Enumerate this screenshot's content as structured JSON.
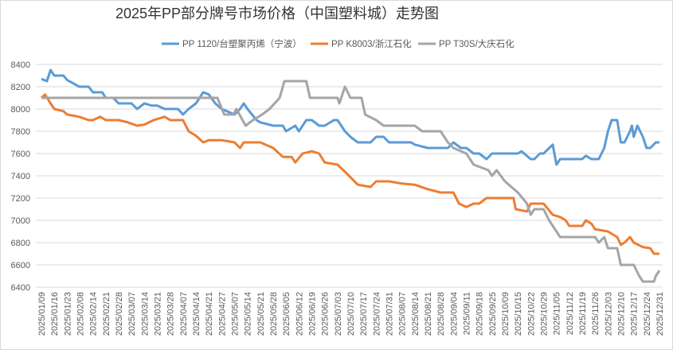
{
  "chart_data": {
    "type": "line",
    "title": "2025年PP部分牌号市场价格（中国塑料城）走势图",
    "xlabel": "",
    "ylabel": "",
    "ylim": [
      6400,
      8400
    ],
    "yticks": [
      6400,
      6600,
      6800,
      7000,
      7200,
      7400,
      7600,
      7800,
      8000,
      8200,
      8400
    ],
    "grid": true,
    "legend_position": "top",
    "year": "2025",
    "xtick_labels": [
      "2025/01/09",
      "2025/01/16",
      "2025/01/23",
      "2025/02/08",
      "2025/02/14",
      "2025/02/21",
      "2025/02/28",
      "2025/03/07",
      "2025/03/14",
      "2025/03/21",
      "2025/03/28",
      "2025/04/07",
      "2025/04/14",
      "2025/04/21",
      "2025/04/27",
      "2025/05/07",
      "2025/05/14",
      "2025/05/21",
      "2025/05/28",
      "2025/06/05",
      "2025/06/12",
      "2025/06/19",
      "2025/06/26",
      "2025/07/03",
      "2025/07/10",
      "2025/07/17",
      "2025/07/24",
      "2025/07/31",
      "2025/08/07",
      "2025/08/14",
      "2025/08/21",
      "2025/08/28",
      "2025/09/04",
      "2025/09/11",
      "2025/09/18",
      "2025/09/25",
      "2025/10/09",
      "2025/10/15",
      "2025/10/22",
      "2025/10/29",
      "2025/11/05",
      "2025/11/12",
      "2025/11/19",
      "2025/11/26",
      "2025/12/03",
      "2025/12/10",
      "2025/12/17",
      "2025/12/24",
      "2025/12/31"
    ],
    "series": [
      {
        "name": "PP 1120/台塑聚丙烯（宁波）",
        "color": "#5b9bd5",
        "points": [
          [
            "01/09",
            8270
          ],
          [
            "01/12",
            8250
          ],
          [
            "01/14",
            8350
          ],
          [
            "01/16",
            8300
          ],
          [
            "01/21",
            8300
          ],
          [
            "01/23",
            8260
          ],
          [
            "02/07",
            8200
          ],
          [
            "02/12",
            8200
          ],
          [
            "02/14",
            8150
          ],
          [
            "02/19",
            8150
          ],
          [
            "02/21",
            8100
          ],
          [
            "02/25",
            8100
          ],
          [
            "02/28",
            8050
          ],
          [
            "03/05",
            8050
          ],
          [
            "03/07",
            8050
          ],
          [
            "03/10",
            8000
          ],
          [
            "03/14",
            8050
          ],
          [
            "03/18",
            8030
          ],
          [
            "03/21",
            8030
          ],
          [
            "03/25",
            8000
          ],
          [
            "03/28",
            8000
          ],
          [
            "04/03",
            8000
          ],
          [
            "04/07",
            7950
          ],
          [
            "04/10",
            8000
          ],
          [
            "04/14",
            8050
          ],
          [
            "04/18",
            8150
          ],
          [
            "04/21",
            8130
          ],
          [
            "04/24",
            8050
          ],
          [
            "04/27",
            8000
          ],
          [
            "05/01",
            7980
          ],
          [
            "05/07",
            7950
          ],
          [
            "05/10",
            8000
          ],
          [
            "05/12",
            8050
          ],
          [
            "05/14",
            8000
          ],
          [
            "05/19",
            7900
          ],
          [
            "05/21",
            7880
          ],
          [
            "05/28",
            7850
          ],
          [
            "06/03",
            7850
          ],
          [
            "06/05",
            7800
          ],
          [
            "06/10",
            7850
          ],
          [
            "06/12",
            7800
          ],
          [
            "06/16",
            7900
          ],
          [
            "06/19",
            7900
          ],
          [
            "06/23",
            7850
          ],
          [
            "06/26",
            7850
          ],
          [
            "07/01",
            7900
          ],
          [
            "07/03",
            7900
          ],
          [
            "07/07",
            7800
          ],
          [
            "07/10",
            7750
          ],
          [
            "07/14",
            7700
          ],
          [
            "07/17",
            7700
          ],
          [
            "07/21",
            7700
          ],
          [
            "07/24",
            7750
          ],
          [
            "07/28",
            7750
          ],
          [
            "07/31",
            7700
          ],
          [
            "08/07",
            7700
          ],
          [
            "08/12",
            7700
          ],
          [
            "08/14",
            7680
          ],
          [
            "08/21",
            7650
          ],
          [
            "08/28",
            7650
          ],
          [
            "09/01",
            7650
          ],
          [
            "09/04",
            7700
          ],
          [
            "09/08",
            7650
          ],
          [
            "09/11",
            7650
          ],
          [
            "09/15",
            7600
          ],
          [
            "09/18",
            7600
          ],
          [
            "09/22",
            7550
          ],
          [
            "09/25",
            7600
          ],
          [
            "09/30",
            7600
          ],
          [
            "10/09",
            7600
          ],
          [
            "10/15",
            7600
          ],
          [
            "10/17",
            7620
          ],
          [
            "10/22",
            7550
          ],
          [
            "10/24",
            7550
          ],
          [
            "10/27",
            7600
          ],
          [
            "10/29",
            7600
          ],
          [
            "11/03",
            7680
          ],
          [
            "11/05",
            7500
          ],
          [
            "11/07",
            7550
          ],
          [
            "11/12",
            7550
          ],
          [
            "11/19",
            7550
          ],
          [
            "11/21",
            7580
          ],
          [
            "11/24",
            7550
          ],
          [
            "11/26",
            7550
          ],
          [
            "11/28",
            7550
          ],
          [
            "12/01",
            7650
          ],
          [
            "12/03",
            7800
          ],
          [
            "12/05",
            7900
          ],
          [
            "12/08",
            7900
          ],
          [
            "12/10",
            7700
          ],
          [
            "12/12",
            7700
          ],
          [
            "12/15",
            7800
          ],
          [
            "12/16",
            7850
          ],
          [
            "12/17",
            7750
          ],
          [
            "12/19",
            7850
          ],
          [
            "12/22",
            7750
          ],
          [
            "12/24",
            7650
          ],
          [
            "12/26",
            7650
          ],
          [
            "12/29",
            7700
          ],
          [
            "12/31",
            7700
          ]
        ]
      },
      {
        "name": "PP K8003/浙江石化",
        "color": "#ed7d31",
        "points": [
          [
            "01/09",
            8100
          ],
          [
            "01/11",
            8130
          ],
          [
            "01/14",
            8050
          ],
          [
            "01/16",
            8000
          ],
          [
            "01/21",
            7980
          ],
          [
            "01/23",
            7950
          ],
          [
            "02/07",
            7930
          ],
          [
            "02/12",
            7900
          ],
          [
            "02/14",
            7900
          ],
          [
            "02/18",
            7930
          ],
          [
            "02/21",
            7900
          ],
          [
            "02/28",
            7900
          ],
          [
            "03/05",
            7880
          ],
          [
            "03/10",
            7850
          ],
          [
            "03/14",
            7860
          ],
          [
            "03/19",
            7900
          ],
          [
            "03/25",
            7930
          ],
          [
            "03/28",
            7900
          ],
          [
            "04/07",
            7900
          ],
          [
            "04/10",
            7800
          ],
          [
            "04/14",
            7760
          ],
          [
            "04/18",
            7700
          ],
          [
            "04/21",
            7720
          ],
          [
            "04/27",
            7720
          ],
          [
            "05/07",
            7700
          ],
          [
            "05/10",
            7650
          ],
          [
            "05/12",
            7700
          ],
          [
            "05/21",
            7700
          ],
          [
            "05/28",
            7650
          ],
          [
            "06/03",
            7570
          ],
          [
            "06/08",
            7570
          ],
          [
            "06/10",
            7520
          ],
          [
            "06/14",
            7600
          ],
          [
            "06/19",
            7620
          ],
          [
            "06/23",
            7600
          ],
          [
            "06/26",
            7520
          ],
          [
            "07/03",
            7500
          ],
          [
            "07/08",
            7420
          ],
          [
            "07/14",
            7320
          ],
          [
            "07/21",
            7300
          ],
          [
            "07/24",
            7350
          ],
          [
            "07/31",
            7350
          ],
          [
            "08/07",
            7330
          ],
          [
            "08/14",
            7320
          ],
          [
            "08/21",
            7280
          ],
          [
            "08/28",
            7250
          ],
          [
            "09/04",
            7250
          ],
          [
            "09/07",
            7150
          ],
          [
            "09/11",
            7120
          ],
          [
            "09/15",
            7150
          ],
          [
            "09/18",
            7150
          ],
          [
            "09/22",
            7200
          ],
          [
            "09/25",
            7200
          ],
          [
            "10/13",
            7200
          ],
          [
            "10/14",
            7100
          ],
          [
            "10/20",
            7080
          ],
          [
            "10/22",
            7150
          ],
          [
            "10/29",
            7150
          ],
          [
            "11/03",
            7050
          ],
          [
            "11/07",
            7030
          ],
          [
            "11/10",
            7000
          ],
          [
            "11/12",
            6950
          ],
          [
            "11/19",
            6950
          ],
          [
            "11/21",
            7000
          ],
          [
            "11/24",
            6970
          ],
          [
            "11/26",
            6920
          ],
          [
            "12/03",
            6900
          ],
          [
            "12/08",
            6850
          ],
          [
            "12/10",
            6780
          ],
          [
            "12/12",
            6800
          ],
          [
            "12/15",
            6850
          ],
          [
            "12/17",
            6800
          ],
          [
            "12/22",
            6760
          ],
          [
            "12/26",
            6750
          ],
          [
            "12/28",
            6700
          ],
          [
            "12/31",
            6700
          ]
        ]
      },
      {
        "name": "PP T30S/大庆石化",
        "color": "#a5a5a5",
        "points": [
          [
            "01/09",
            8100
          ],
          [
            "04/25",
            8100
          ],
          [
            "04/29",
            7950
          ],
          [
            "05/06",
            7950
          ],
          [
            "05/08",
            8000
          ],
          [
            "05/13",
            7850
          ],
          [
            "05/17",
            7900
          ],
          [
            "05/22",
            7950
          ],
          [
            "05/26",
            8000
          ],
          [
            "06/01",
            8100
          ],
          [
            "06/04",
            8250
          ],
          [
            "06/16",
            8250
          ],
          [
            "06/18",
            8100
          ],
          [
            "07/03",
            8100
          ],
          [
            "07/04",
            8050
          ],
          [
            "07/07",
            8200
          ],
          [
            "07/10",
            8100
          ],
          [
            "07/16",
            8100
          ],
          [
            "07/18",
            7950
          ],
          [
            "07/24",
            7900
          ],
          [
            "07/28",
            7850
          ],
          [
            "08/14",
            7850
          ],
          [
            "08/18",
            7800
          ],
          [
            "08/28",
            7800
          ],
          [
            "09/01",
            7700
          ],
          [
            "09/04",
            7650
          ],
          [
            "09/11",
            7600
          ],
          [
            "09/15",
            7500
          ],
          [
            "09/23",
            7450
          ],
          [
            "09/25",
            7400
          ],
          [
            "09/30",
            7450
          ],
          [
            "10/09",
            7350
          ],
          [
            "10/15",
            7250
          ],
          [
            "10/20",
            7150
          ],
          [
            "10/22",
            7050
          ],
          [
            "10/24",
            7100
          ],
          [
            "10/29",
            7100
          ],
          [
            "11/01",
            7000
          ],
          [
            "11/05",
            6900
          ],
          [
            "11/07",
            6850
          ],
          [
            "11/26",
            6850
          ],
          [
            "11/28",
            6800
          ],
          [
            "12/01",
            6850
          ],
          [
            "12/03",
            6750
          ],
          [
            "12/08",
            6750
          ],
          [
            "12/10",
            6600
          ],
          [
            "12/17",
            6600
          ],
          [
            "12/20",
            6500
          ],
          [
            "12/22",
            6450
          ],
          [
            "12/28",
            6450
          ],
          [
            "12/29",
            6500
          ],
          [
            "12/31",
            6550
          ]
        ]
      }
    ]
  }
}
